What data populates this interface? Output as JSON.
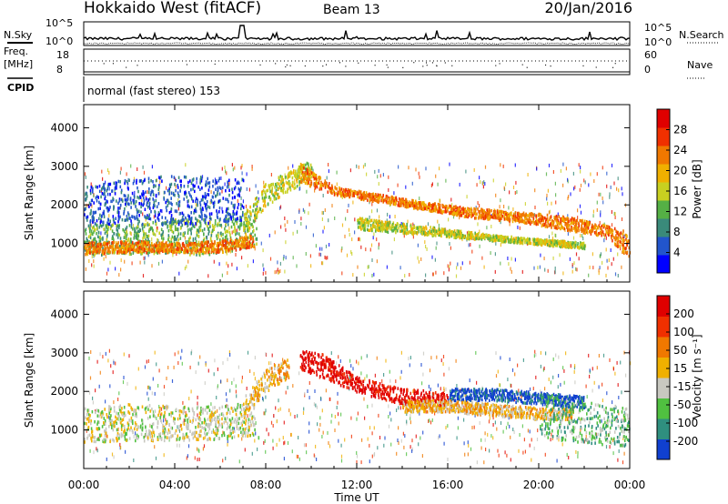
{
  "header": {
    "title": "Hokkaido West (fitACF)",
    "beam": "Beam 13",
    "date": "20/Jan/2016"
  },
  "status": {
    "nsky_label": "N.Sky",
    "nsky_ticks": [
      "10^5",
      "10^0"
    ],
    "nsearch_label": "N.Search",
    "freq_label": "Freq.",
    "freq_unit": "[MHz]",
    "freq_ticks": [
      "18",
      "8"
    ],
    "nave_label": "Nave",
    "nave_ticks": [
      "60",
      "0"
    ],
    "cpid_label": "CPID",
    "cpid_text": "normal (fast stereo) 153"
  },
  "chart_data": [
    {
      "type": "heatmap",
      "panel": "power",
      "title": "",
      "xlabel": "",
      "ylabel": "Slant Range [km]",
      "ylim": [
        0,
        4600
      ],
      "yticks": [
        "4000",
        "3000",
        "2000",
        "1000"
      ],
      "colorbar_label": "Power [dB]",
      "colorbar_ticks": [
        "28",
        "24",
        "20",
        "16",
        "12",
        "8",
        "4"
      ],
      "colors": [
        "#0000ff",
        "#2255cc",
        "#3a8a7a",
        "#55b045",
        "#c8d020",
        "#f0b000",
        "#f07800",
        "#f03000",
        "#e00000"
      ],
      "scatter_bands": [
        {
          "t": [
            0.0,
            1.0,
            2.0,
            3.0,
            4.0,
            5.0,
            6.0,
            7.0,
            7.6
          ],
          "lo": [
            700,
            750,
            760,
            780,
            760,
            740,
            760,
            880,
            980
          ],
          "hi": [
            1500,
            1550,
            1520,
            1580,
            1650,
            1700,
            1650,
            1750,
            1900
          ],
          "level": 3
        },
        {
          "t": [
            0.0,
            2.0,
            4.0,
            6.0,
            7.5
          ],
          "lo": [
            750,
            800,
            800,
            800,
            950
          ],
          "hi": [
            1050,
            1100,
            1050,
            1100,
            1250
          ],
          "level": 6
        },
        {
          "t": [
            7.0,
            8.0,
            9.0,
            10.0
          ],
          "lo": [
            1200,
            2000,
            2400,
            2700
          ],
          "hi": [
            1800,
            2600,
            2900,
            3200
          ],
          "level": 4
        },
        {
          "t": [
            9.5,
            11.0,
            13.0,
            15.0,
            17.0,
            19.0,
            21.0,
            23.0,
            24.0
          ],
          "lo": [
            2600,
            2300,
            2100,
            1900,
            1700,
            1600,
            1400,
            1200,
            600
          ],
          "hi": [
            3100,
            2500,
            2300,
            2100,
            1950,
            1850,
            1750,
            1500,
            1300
          ],
          "level": 6
        },
        {
          "t": [
            12.0,
            14.0,
            16.0,
            18.0,
            20.0,
            22.0
          ],
          "lo": [
            1400,
            1300,
            1200,
            1100,
            1000,
            900
          ],
          "hi": [
            1700,
            1550,
            1400,
            1250,
            1150,
            1050
          ],
          "level": 4
        },
        {
          "t": [
            0.0,
            2.0,
            4.0,
            7.0
          ],
          "lo": [
            1500,
            1550,
            1500,
            1600
          ],
          "hi": [
            2500,
            2700,
            2800,
            2700
          ],
          "level": 1
        }
      ]
    },
    {
      "type": "heatmap",
      "panel": "velocity",
      "title": "",
      "xlabel": "Time UT",
      "ylabel": "Slant Range [km]",
      "ylim": [
        0,
        4600
      ],
      "yticks": [
        "4000",
        "3000",
        "2000",
        "1000"
      ],
      "xticks": [
        "00:00",
        "04:00",
        "08:00",
        "12:00",
        "16:00",
        "20:00",
        "00:00"
      ],
      "colorbar_label": "Velocity [m s⁻¹]",
      "colorbar_ticks": [
        "200",
        "100",
        "50",
        "15",
        "-15",
        "-50",
        "-100",
        "-200"
      ],
      "colors": [
        "#1040d0",
        "#2f8f7f",
        "#50c040",
        "#c8c8c0",
        "#f0b000",
        "#f07800",
        "#f03000",
        "#e00000"
      ],
      "scatter_bands": [
        {
          "t": [
            0.0,
            2.0,
            4.0,
            6.0,
            7.5
          ],
          "lo": [
            700,
            750,
            750,
            800,
            900
          ],
          "hi": [
            1600,
            1700,
            1650,
            1650,
            1800
          ],
          "level": 3
        },
        {
          "t": [
            7.0,
            8.0,
            9.0
          ],
          "lo": [
            1400,
            2000,
            2400
          ],
          "hi": [
            1900,
            2600,
            2900
          ],
          "level": 4
        },
        {
          "t": [
            9.5,
            10.5,
            12.0,
            14.0,
            16.0
          ],
          "lo": [
            2600,
            2400,
            2000,
            1700,
            1600
          ],
          "hi": [
            3100,
            3000,
            2400,
            2100,
            2000
          ],
          "level": 7
        },
        {
          "t": [
            16.0,
            18.0,
            20.0,
            22.0
          ],
          "lo": [
            1800,
            1800,
            1700,
            1600
          ],
          "hi": [
            2100,
            2100,
            2000,
            1900
          ],
          "level": 0
        },
        {
          "t": [
            14.0,
            16.0,
            18.0,
            20.0,
            21.5
          ],
          "lo": [
            1500,
            1500,
            1400,
            1300,
            1300
          ],
          "hi": [
            1800,
            1800,
            1700,
            1600,
            1600
          ],
          "level": 4
        },
        {
          "t": [
            20.0,
            22.0,
            24.0
          ],
          "lo": [
            800,
            700,
            600
          ],
          "hi": [
            2000,
            1800,
            1600
          ],
          "level": 2
        }
      ]
    }
  ]
}
